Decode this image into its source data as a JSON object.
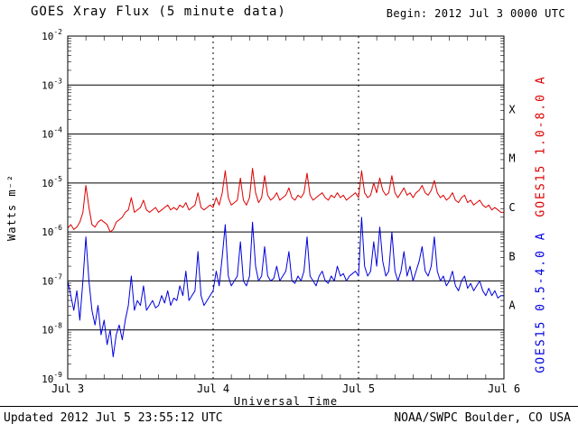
{
  "header": {
    "title": "GOES Xray Flux (5 minute data)",
    "begin_label": "Begin: 2012 Jul 3 0000 UTC"
  },
  "footer": {
    "updated": "Updated 2012 Jul 5 23:55:12 UTC",
    "source": "NOAA/SWPC Boulder, CO USA"
  },
  "chart_data": {
    "type": "line",
    "title": "GOES Xray Flux (5 minute data)",
    "xlabel": "Universal Time",
    "ylabel": "Watts m⁻²",
    "y_scale": "log10",
    "y_log_range": [
      -9,
      -2
    ],
    "y_tick_exponents": [
      -2,
      -3,
      -4,
      -5,
      -6,
      -7,
      -8,
      -9
    ],
    "x_unit": "hours since 2012 Jul 3 0000 UTC",
    "x_range_hours": [
      0,
      72
    ],
    "x_start_hours": 0,
    "x_step_hours": 0.5,
    "x_tick_hours": [
      0,
      24,
      48,
      72
    ],
    "x_tick_labels": [
      "Jul 3",
      "Jul 4",
      "Jul 5",
      "Jul 6"
    ],
    "grid": "horizontal solid per decade, vertical dashed per day",
    "flare_classes": [
      {
        "label": "X",
        "log_center": -3.5
      },
      {
        "label": "M",
        "log_center": -4.5
      },
      {
        "label": "C",
        "log_center": -5.5
      },
      {
        "label": "B",
        "log_center": -6.5
      },
      {
        "label": "A",
        "log_center": -7.5
      }
    ],
    "series": [
      {
        "name": "GOES15 1.0-8.0 A",
        "color": "#dd0000",
        "log10_values": [
          -5.92,
          -5.85,
          -5.95,
          -5.9,
          -5.8,
          -5.6,
          -5.05,
          -5.5,
          -5.85,
          -5.9,
          -5.8,
          -5.75,
          -5.8,
          -5.85,
          -6.0,
          -5.95,
          -5.8,
          -5.75,
          -5.7,
          -5.6,
          -5.55,
          -5.3,
          -5.6,
          -5.55,
          -5.5,
          -5.35,
          -5.55,
          -5.6,
          -5.55,
          -5.5,
          -5.6,
          -5.55,
          -5.5,
          -5.45,
          -5.55,
          -5.5,
          -5.55,
          -5.45,
          -5.5,
          -5.4,
          -5.55,
          -5.5,
          -5.45,
          -5.2,
          -5.5,
          -5.55,
          -5.5,
          -5.45,
          -5.5,
          -5.3,
          -5.45,
          -5.2,
          -4.75,
          -5.3,
          -5.45,
          -5.4,
          -5.35,
          -4.9,
          -5.35,
          -5.45,
          -5.3,
          -4.7,
          -5.2,
          -5.4,
          -5.3,
          -4.85,
          -5.25,
          -5.35,
          -5.3,
          -5.2,
          -5.35,
          -5.3,
          -5.25,
          -5.1,
          -5.3,
          -5.35,
          -5.25,
          -5.3,
          -5.2,
          -4.8,
          -5.25,
          -5.35,
          -5.3,
          -5.25,
          -5.2,
          -5.3,
          -5.35,
          -5.25,
          -5.3,
          -5.2,
          -5.3,
          -5.25,
          -5.35,
          -5.3,
          -5.25,
          -5.2,
          -5.3,
          -4.75,
          -5.2,
          -5.3,
          -5.25,
          -5.0,
          -5.2,
          -4.9,
          -5.15,
          -5.25,
          -5.2,
          -4.85,
          -5.2,
          -5.3,
          -5.2,
          -5.1,
          -5.25,
          -5.2,
          -5.3,
          -5.2,
          -5.15,
          -5.05,
          -5.2,
          -5.25,
          -5.15,
          -4.95,
          -5.2,
          -5.3,
          -5.25,
          -5.35,
          -5.3,
          -5.2,
          -5.35,
          -5.4,
          -5.3,
          -5.25,
          -5.4,
          -5.35,
          -5.45,
          -5.4,
          -5.35,
          -5.45,
          -5.5,
          -5.45,
          -5.55,
          -5.5,
          -5.55,
          -5.6,
          -5.6
        ]
      },
      {
        "name": "GOES15 0.5-4.0 A",
        "color": "#0000dd",
        "log10_values": [
          -7.0,
          -7.3,
          -7.6,
          -7.2,
          -7.8,
          -7.0,
          -6.1,
          -7.0,
          -7.6,
          -7.9,
          -7.5,
          -8.1,
          -7.8,
          -8.3,
          -8.0,
          -8.55,
          -8.1,
          -7.9,
          -8.2,
          -7.8,
          -7.5,
          -6.9,
          -7.6,
          -7.4,
          -7.5,
          -7.1,
          -7.6,
          -7.5,
          -7.4,
          -7.55,
          -7.5,
          -7.3,
          -7.45,
          -7.2,
          -7.5,
          -7.35,
          -7.4,
          -7.1,
          -7.3,
          -6.8,
          -7.4,
          -7.3,
          -7.2,
          -6.4,
          -7.3,
          -7.5,
          -7.4,
          -7.3,
          -7.2,
          -6.8,
          -7.1,
          -6.5,
          -5.85,
          -6.9,
          -7.1,
          -7.0,
          -6.9,
          -6.2,
          -7.0,
          -7.1,
          -6.9,
          -5.8,
          -6.7,
          -7.0,
          -6.9,
          -6.3,
          -6.9,
          -7.0,
          -6.95,
          -6.7,
          -7.0,
          -6.9,
          -6.8,
          -6.4,
          -7.0,
          -7.05,
          -6.9,
          -7.0,
          -6.8,
          -6.1,
          -6.9,
          -7.0,
          -7.1,
          -6.9,
          -6.8,
          -7.0,
          -7.05,
          -6.9,
          -7.0,
          -6.7,
          -6.9,
          -6.85,
          -7.0,
          -6.9,
          -6.85,
          -6.8,
          -6.9,
          -5.7,
          -6.7,
          -6.9,
          -6.8,
          -6.2,
          -6.7,
          -5.9,
          -6.6,
          -6.9,
          -6.8,
          -6.0,
          -6.8,
          -7.0,
          -6.8,
          -6.4,
          -6.9,
          -6.7,
          -7.0,
          -6.8,
          -6.6,
          -6.3,
          -6.8,
          -6.9,
          -6.7,
          -6.1,
          -6.8,
          -7.0,
          -6.9,
          -7.1,
          -7.0,
          -6.8,
          -7.1,
          -7.2,
          -7.0,
          -6.9,
          -7.15,
          -7.05,
          -7.2,
          -7.1,
          -7.0,
          -7.2,
          -7.3,
          -7.15,
          -7.3,
          -7.2,
          -7.35,
          -7.3,
          -7.3
        ]
      }
    ]
  }
}
